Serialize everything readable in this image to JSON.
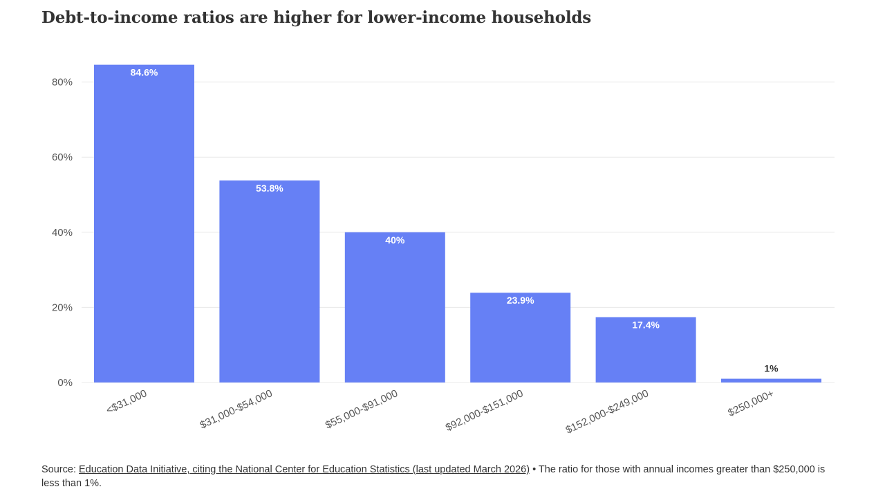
{
  "title": "Debt-to-income ratios are higher for lower-income households",
  "footer": {
    "source_prefix": "Source: ",
    "source_link": "Education Data Initiative, citing the National Center for Education Statistics (last updated March 2026)",
    "note": " • The ratio for those with annual incomes greater than $250,000 is less than 1%."
  },
  "colors": {
    "bar": "#6680f5",
    "grid": "#e8e8e8",
    "label_inside": "#ffffff",
    "label_outside": "#333333"
  },
  "chart_data": {
    "type": "bar",
    "title": "Debt-to-income ratios are higher for lower-income households",
    "xlabel": "",
    "ylabel": "",
    "categories": [
      "<$31,000",
      "$31,000-$54,000",
      "$55,000-$91,000",
      "$92,000-$151,000",
      "$152,000-$249,000",
      "$250,000+"
    ],
    "values": [
      84.6,
      53.8,
      40,
      23.9,
      17.4,
      1
    ],
    "value_labels": [
      "84.6%",
      "53.8%",
      "40%",
      "23.9%",
      "17.4%",
      "1%"
    ],
    "y_ticks": [
      0,
      20,
      40,
      60,
      80
    ],
    "y_tick_labels": [
      "0%",
      "20%",
      "40%",
      "60%",
      "80%"
    ],
    "ylim": [
      0,
      90
    ],
    "grid": true,
    "legend": "none"
  }
}
